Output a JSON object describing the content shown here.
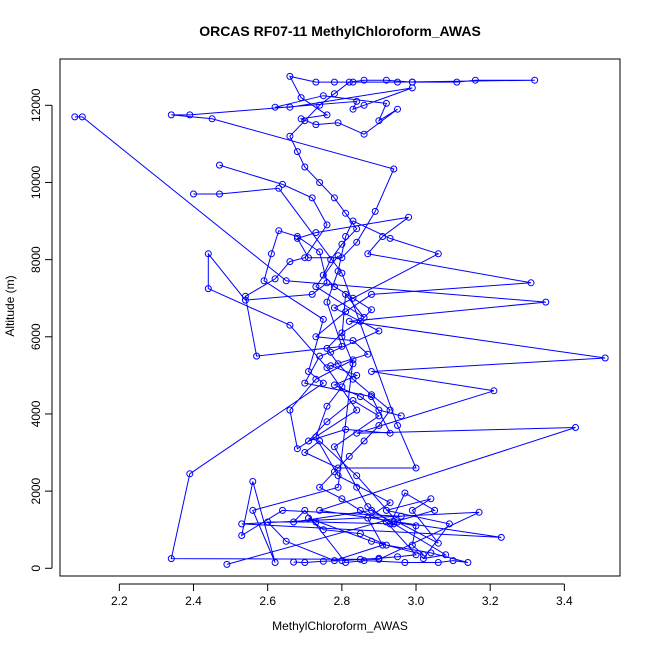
{
  "chart_data": {
    "type": "line",
    "title": "ORCAS RF07-11 MethylChloroform_AWAS",
    "xlabel": "MethylChloroform_AWAS",
    "ylabel": "Altitude (m)",
    "xlim": [
      2.04,
      3.55
    ],
    "ylim": [
      -200,
      13200
    ],
    "x_ticks": [
      2.2,
      2.4,
      2.6,
      2.8,
      3.0,
      3.2,
      3.4
    ],
    "x_tick_labels": [
      "2.2",
      "2.4",
      "2.6",
      "2.8",
      "3.0",
      "3.2",
      "3.4"
    ],
    "y_ticks": [
      0,
      2000,
      4000,
      6000,
      8000,
      10000,
      12000
    ],
    "y_tick_labels": [
      "0",
      "2000",
      "4000",
      "6000",
      "8000",
      "10000",
      "12000"
    ],
    "grid": false,
    "marker": "open-circle",
    "color": "#0000ff",
    "series": [
      {
        "points": [
          [
            2.67,
            160
          ],
          [
            2.7,
            150
          ],
          [
            2.75,
            180
          ],
          [
            2.8,
            200
          ],
          [
            2.85,
            230
          ],
          [
            2.9,
            260
          ],
          [
            2.95,
            300
          ],
          [
            3.0,
            350
          ],
          [
            2.92,
            1200
          ],
          [
            2.85,
            1500
          ],
          [
            2.8,
            1800
          ],
          [
            2.74,
            2100
          ],
          [
            2.78,
            2500
          ],
          [
            2.82,
            2900
          ],
          [
            2.86,
            3300
          ],
          [
            2.9,
            3700
          ],
          [
            2.93,
            4100
          ],
          [
            2.88,
            4500
          ],
          [
            2.83,
            4900
          ],
          [
            2.79,
            5300
          ],
          [
            2.76,
            5700
          ],
          [
            2.8,
            6100
          ],
          [
            2.85,
            6400
          ],
          [
            2.88,
            6700
          ],
          [
            2.83,
            7000
          ],
          [
            2.78,
            7300
          ],
          [
            2.75,
            7600
          ],
          [
            2.77,
            8000
          ],
          [
            2.8,
            8400
          ],
          [
            2.84,
            8800
          ],
          [
            2.81,
            9200
          ],
          [
            2.78,
            9600
          ],
          [
            2.74,
            10000
          ],
          [
            2.7,
            10400
          ],
          [
            2.68,
            10800
          ],
          [
            2.66,
            11200
          ],
          [
            2.7,
            11600
          ],
          [
            2.74,
            12000
          ],
          [
            2.78,
            12300
          ],
          [
            2.82,
            12600
          ],
          [
            2.86,
            12650
          ],
          [
            2.92,
            12650
          ],
          [
            2.99,
            12600
          ]
        ]
      },
      {
        "points": [
          [
            2.99,
            12600
          ],
          [
            3.11,
            12600
          ],
          [
            3.16,
            12650
          ],
          [
            3.32,
            12650
          ],
          [
            2.95,
            12600
          ],
          [
            2.83,
            12600
          ],
          [
            2.78,
            12600
          ],
          [
            2.73,
            12600
          ],
          [
            2.66,
            12750
          ],
          [
            2.69,
            12200
          ],
          [
            2.76,
            11750
          ],
          [
            2.69,
            11650
          ],
          [
            2.73,
            11500
          ],
          [
            2.79,
            11550
          ],
          [
            2.86,
            11250
          ],
          [
            2.95,
            11900
          ],
          [
            2.9,
            11600
          ],
          [
            2.92,
            12050
          ],
          [
            2.75,
            12250
          ],
          [
            2.62,
            11950
          ],
          [
            2.66,
            11950
          ],
          [
            2.99,
            12450
          ],
          [
            2.86,
            12000
          ],
          [
            2.83,
            11900
          ],
          [
            2.84,
            12100
          ],
          [
            2.39,
            11750
          ],
          [
            2.34,
            11750
          ],
          [
            2.45,
            11650
          ],
          [
            2.94,
            10350
          ],
          [
            2.89,
            9250
          ],
          [
            2.84,
            8450
          ],
          [
            2.8,
            8050
          ],
          [
            2.71,
            8050
          ],
          [
            2.68,
            8550
          ],
          [
            2.73,
            8700
          ],
          [
            2.98,
            9100
          ],
          [
            2.91,
            8600
          ],
          [
            2.87,
            8150
          ],
          [
            3.31,
            7400
          ],
          [
            2.88,
            7100
          ],
          [
            2.81,
            6650
          ],
          [
            2.73,
            6000
          ],
          [
            2.83,
            5900
          ],
          [
            2.87,
            5550
          ],
          [
            2.77,
            5250
          ],
          [
            2.84,
            5000
          ],
          [
            2.78,
            4750
          ],
          [
            2.85,
            4450
          ],
          [
            2.9,
            4100
          ],
          [
            2.96,
            3950
          ]
        ]
      },
      {
        "points": [
          [
            2.08,
            11700
          ],
          [
            2.1,
            11700
          ],
          [
            2.65,
            7450
          ],
          [
            3.35,
            6900
          ],
          [
            2.82,
            6400
          ],
          [
            3.51,
            5450
          ],
          [
            2.88,
            5100
          ],
          [
            3.21,
            4600
          ],
          [
            2.84,
            3500
          ],
          [
            3.43,
            3650
          ],
          [
            2.74,
            1500
          ],
          [
            3.23,
            800
          ],
          [
            2.53,
            1150
          ],
          [
            3.17,
            1450
          ],
          [
            2.9,
            230
          ],
          [
            2.34,
            250
          ],
          [
            2.39,
            2450
          ],
          [
            2.75,
            4800
          ],
          [
            2.71,
            5100
          ],
          [
            2.75,
            6450
          ],
          [
            2.59,
            7450
          ],
          [
            2.61,
            8150
          ],
          [
            2.63,
            8750
          ],
          [
            2.68,
            8600
          ],
          [
            2.74,
            8200
          ],
          [
            2.76,
            7400
          ],
          [
            2.72,
            7100
          ],
          [
            2.54,
            6950
          ],
          [
            2.44,
            8150
          ],
          [
            2.44,
            7250
          ],
          [
            2.66,
            6300
          ],
          [
            2.76,
            5200
          ],
          [
            2.84,
            4100
          ],
          [
            2.68,
            3100
          ],
          [
            2.66,
            4100
          ],
          [
            2.73,
            4900
          ],
          [
            2.83,
            5400
          ],
          [
            2.79,
            2100
          ],
          [
            2.56,
            1500
          ],
          [
            2.62,
            150
          ],
          [
            2.56,
            2250
          ],
          [
            2.53,
            850
          ],
          [
            2.64,
            1500
          ],
          [
            2.96,
            1350
          ],
          [
            2.49,
            100
          ]
        ]
      },
      {
        "points": [
          [
            2.4,
            9700
          ],
          [
            2.47,
            9700
          ],
          [
            2.63,
            9850
          ],
          [
            2.8,
            7650
          ],
          [
            2.95,
            3700
          ],
          [
            3.0,
            2600
          ],
          [
            2.79,
            2600
          ],
          [
            2.7,
            3000
          ],
          [
            2.74,
            3300
          ],
          [
            2.84,
            2400
          ],
          [
            2.95,
            1200
          ],
          [
            3.06,
            650
          ],
          [
            2.99,
            1500
          ],
          [
            3.04,
            1800
          ],
          [
            2.92,
            1500
          ],
          [
            3.09,
            1150
          ],
          [
            3.02,
            250
          ],
          [
            3.08,
            350
          ],
          [
            2.88,
            1500
          ],
          [
            2.67,
            1200
          ],
          [
            2.7,
            1500
          ],
          [
            2.81,
            150
          ],
          [
            2.86,
            200
          ],
          [
            2.97,
            150
          ],
          [
            3.06,
            150
          ],
          [
            3.1,
            200
          ],
          [
            3.14,
            150
          ],
          [
            3.04,
            400
          ],
          [
            2.92,
            600
          ],
          [
            2.85,
            900
          ],
          [
            2.75,
            1000
          ],
          [
            2.71,
            1300
          ],
          [
            2.88,
            700
          ],
          [
            3.02,
            350
          ],
          [
            2.99,
            600
          ],
          [
            3.0,
            1100
          ],
          [
            2.94,
            1200
          ],
          [
            3.05,
            1500
          ],
          [
            2.97,
            1950
          ],
          [
            2.93,
            1150
          ]
        ]
      },
      {
        "points": [
          [
            2.47,
            10450
          ],
          [
            2.64,
            9950
          ],
          [
            2.72,
            9600
          ],
          [
            2.76,
            8900
          ],
          [
            2.7,
            8050
          ],
          [
            2.66,
            7950
          ],
          [
            2.62,
            7500
          ],
          [
            2.54,
            7050
          ],
          [
            2.57,
            5500
          ],
          [
            2.8,
            5750
          ],
          [
            2.76,
            6900
          ],
          [
            2.79,
            7700
          ],
          [
            2.81,
            8600
          ],
          [
            2.83,
            9000
          ],
          [
            2.93,
            8550
          ],
          [
            3.06,
            8150
          ],
          [
            2.78,
            6750
          ],
          [
            2.9,
            6150
          ],
          [
            2.77,
            5600
          ],
          [
            2.74,
            5500
          ],
          [
            2.7,
            4800
          ],
          [
            2.88,
            4450
          ],
          [
            2.93,
            3500
          ],
          [
            2.81,
            3600
          ],
          [
            2.71,
            3300
          ],
          [
            2.76,
            3800
          ],
          [
            2.83,
            4350
          ],
          [
            2.9,
            3950
          ],
          [
            2.78,
            3150
          ],
          [
            2.84,
            2100
          ],
          [
            2.87,
            1600
          ],
          [
            2.94,
            1150
          ],
          [
            2.73,
            1200
          ],
          [
            2.6,
            1200
          ],
          [
            2.65,
            700
          ],
          [
            2.78,
            200
          ],
          [
            2.91,
            600
          ],
          [
            2.87,
            1300
          ],
          [
            2.93,
            1700
          ],
          [
            2.79,
            2400
          ],
          [
            2.73,
            3400
          ],
          [
            2.76,
            4200
          ],
          [
            2.8,
            4700
          ],
          [
            2.83,
            5300
          ],
          [
            2.8,
            6000
          ],
          [
            2.81,
            7100
          ],
          [
            2.86,
            6500
          ],
          [
            2.73,
            7300
          ],
          [
            2.79,
            8100
          ]
        ]
      }
    ]
  }
}
